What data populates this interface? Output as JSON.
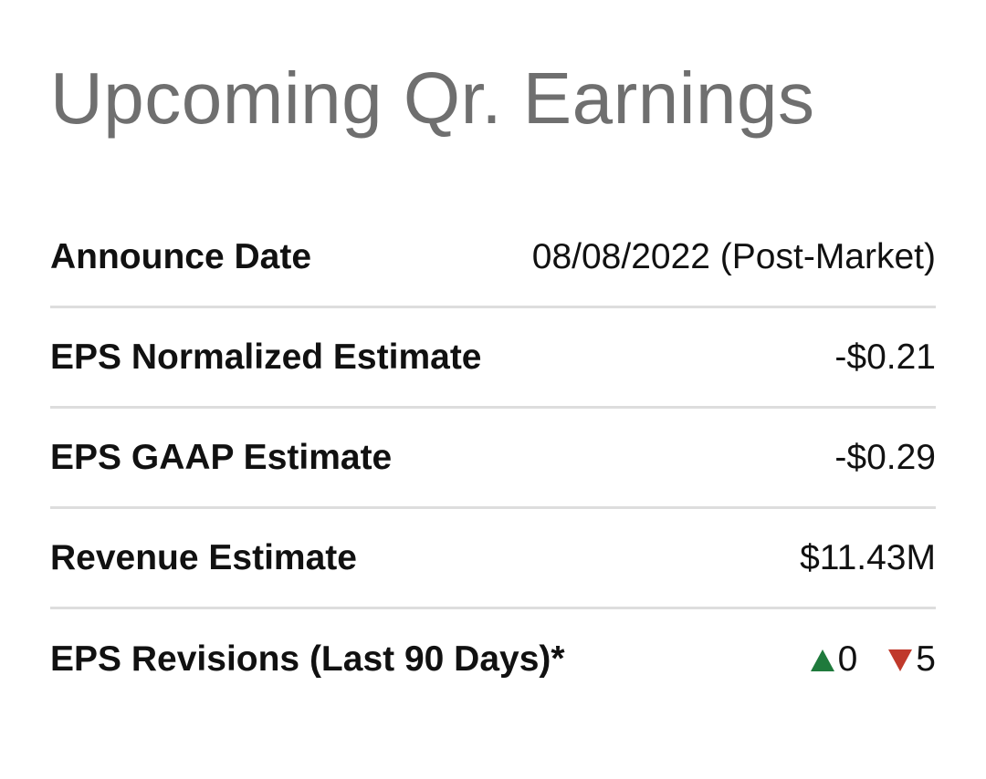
{
  "title": "Upcoming Qr. Earnings",
  "rows": [
    {
      "label": "Announce Date",
      "value": "08/08/2022 (Post-Market)"
    },
    {
      "label": "EPS Normalized Estimate",
      "value": "-$0.21"
    },
    {
      "label": "EPS GAAP Estimate",
      "value": "-$0.29"
    },
    {
      "label": "Revenue Estimate",
      "value": "$11.43M"
    },
    {
      "label": "EPS Revisions (Last 90 Days)*",
      "revisions": {
        "up": "0",
        "down": "5"
      }
    }
  ],
  "icons": {
    "up": "triangle-up-icon",
    "down": "triangle-down-icon"
  },
  "colors": {
    "title": "#6f6f6f",
    "up": "#1f7a3c",
    "down": "#c0392b",
    "divider": "#dddddd"
  }
}
